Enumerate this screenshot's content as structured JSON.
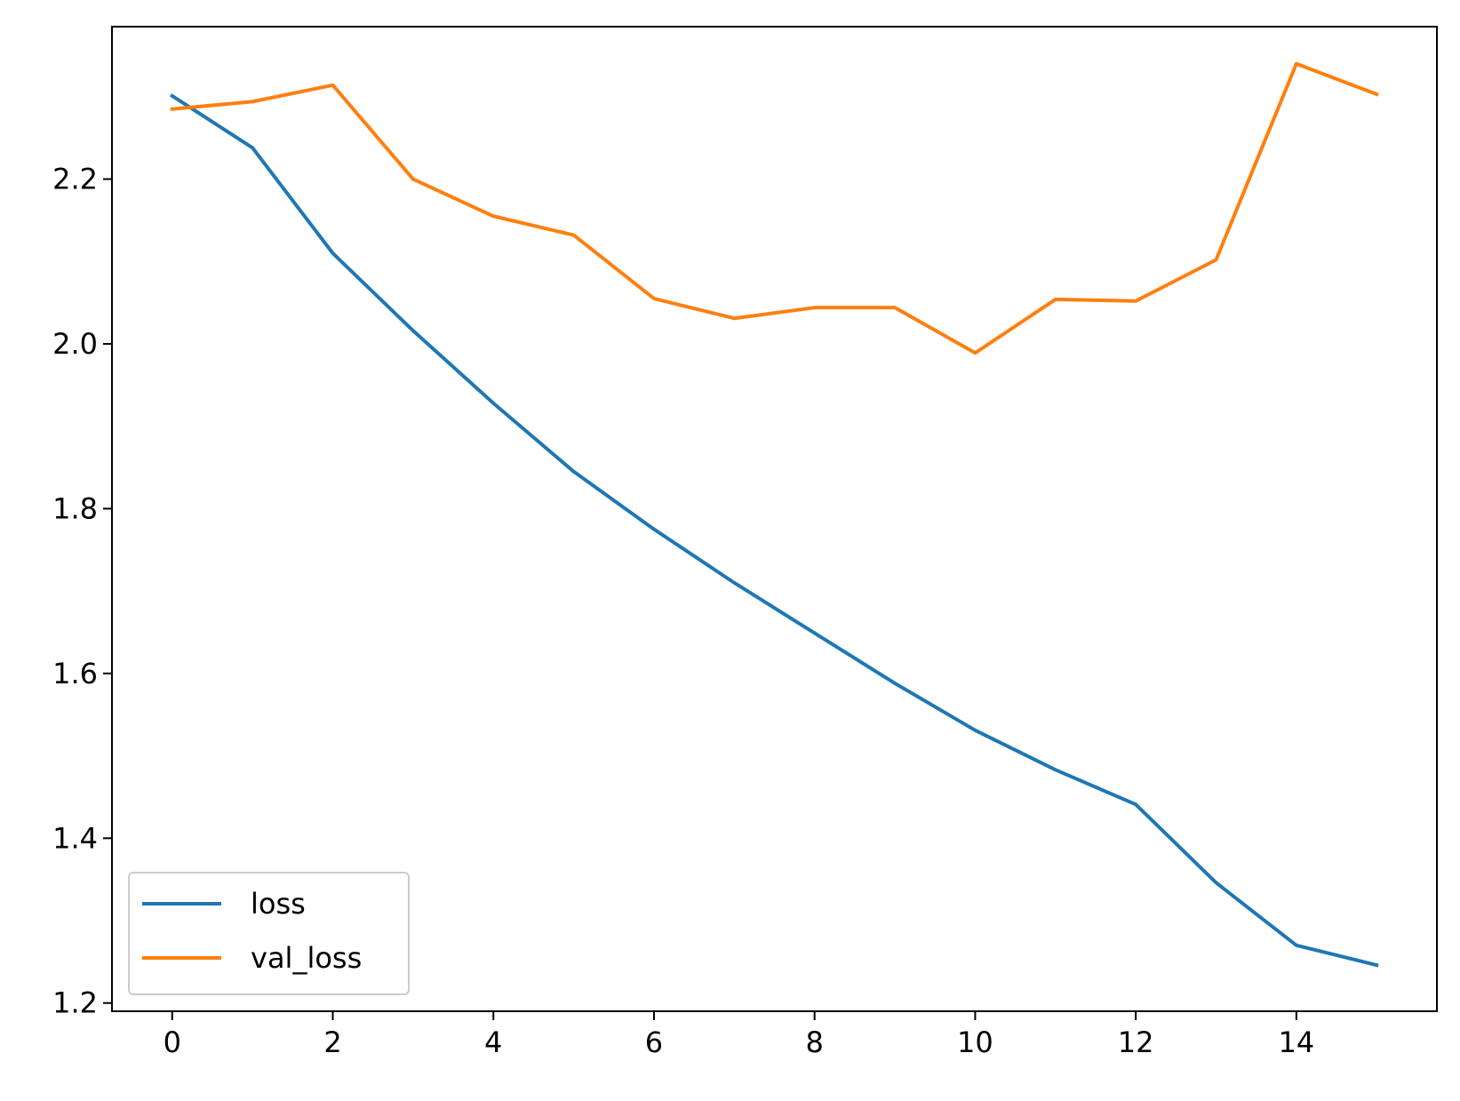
{
  "chart_data": {
    "type": "line",
    "title": "",
    "xlabel": "",
    "ylabel": "",
    "xlim": [
      -0.75,
      15.75
    ],
    "ylim": [
      1.19,
      2.385
    ],
    "x": [
      0,
      1,
      2,
      3,
      4,
      5,
      6,
      7,
      8,
      9,
      10,
      11,
      12,
      13,
      14,
      15
    ],
    "xticks": [
      0,
      2,
      4,
      6,
      8,
      10,
      12,
      14
    ],
    "xtick_labels": [
      "0",
      "2",
      "4",
      "6",
      "8",
      "10",
      "12",
      "14"
    ],
    "yticks": [
      1.2,
      1.4,
      1.6,
      1.8,
      2.0,
      2.2
    ],
    "ytick_labels": [
      "1.2",
      "1.4",
      "1.6",
      "1.8",
      "2.0",
      "2.2"
    ],
    "grid": false,
    "legend_position": "lower-left",
    "series": [
      {
        "name": "loss",
        "color": "#1f77b4",
        "values": [
          2.301,
          2.238,
          2.11,
          2.016,
          1.928,
          1.845,
          1.775,
          1.71,
          1.649,
          1.588,
          1.531,
          1.483,
          1.441,
          1.346,
          1.27,
          1.246
        ]
      },
      {
        "name": "val_loss",
        "color": "#ff7f0e",
        "values": [
          2.285,
          2.294,
          2.314,
          2.2,
          2.155,
          2.132,
          2.055,
          2.031,
          2.044,
          2.044,
          1.989,
          2.054,
          2.052,
          2.102,
          2.34,
          2.303
        ]
      }
    ]
  }
}
